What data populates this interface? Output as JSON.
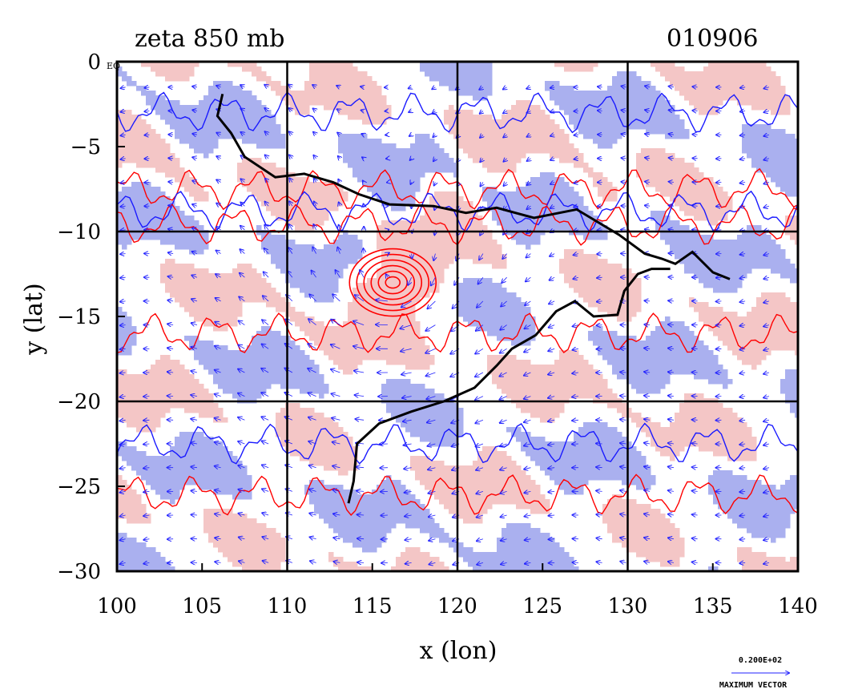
{
  "title_left": "zeta 850 mb",
  "title_right": "010906",
  "equator_suffix": "EQ",
  "chart_data": {
    "type": "map",
    "title": "zeta 850 mb",
    "date_code": "010906",
    "xlabel": "x (lon)",
    "ylabel": "y (lat)",
    "xlim": [
      100,
      140
    ],
    "ylim": [
      -30,
      0
    ],
    "xticks": [
      100,
      105,
      110,
      115,
      120,
      125,
      130,
      135,
      140
    ],
    "xtick_labels": [
      "100",
      "105",
      "110",
      "115",
      "120",
      "125",
      "130",
      "135",
      "140"
    ],
    "yticks": [
      0,
      -5,
      -10,
      -15,
      -20,
      -25,
      -30
    ],
    "ytick_labels": [
      "0",
      "−5",
      "−10",
      "−15",
      "−20",
      "−25",
      "−30"
    ],
    "grid_lon": [
      110,
      120,
      130
    ],
    "grid_lat": [
      -10,
      -20
    ],
    "cyclone_center": {
      "lon": 116.2,
      "lat": -13.0
    },
    "colors": {
      "positive_fill": "#f4c6c6",
      "negative_fill": "#aab0ef",
      "positive_contour": "#ff0000",
      "negative_contour": "#1a1aff",
      "vectors": "#2020ff",
      "coastline": "#000000"
    },
    "coastline_points": [
      [
        106.2,
        -1.9
      ],
      [
        105.9,
        -3.2
      ],
      [
        106.7,
        -4.2
      ],
      [
        107.5,
        -5.6
      ],
      [
        109.3,
        -6.8
      ],
      [
        111.0,
        -6.6
      ],
      [
        112.7,
        -7.1
      ],
      [
        114.2,
        -7.8
      ],
      [
        116.0,
        -8.4
      ],
      [
        118.6,
        -8.5
      ],
      [
        120.5,
        -8.9
      ],
      [
        122.3,
        -8.6
      ],
      [
        124.5,
        -9.2
      ],
      [
        127.0,
        -8.7
      ],
      [
        129.5,
        -10.2
      ],
      [
        131.0,
        -11.3
      ],
      [
        132.0,
        -11.6
      ],
      [
        132.8,
        -11.9
      ],
      [
        133.8,
        -11.2
      ],
      [
        135.0,
        -12.4
      ],
      [
        136.0,
        -12.8
      ]
    ],
    "australia_coast_points": [
      [
        113.6,
        -26.0
      ],
      [
        113.9,
        -24.7
      ],
      [
        114.1,
        -22.5
      ],
      [
        115.4,
        -21.3
      ],
      [
        117.3,
        -20.6
      ],
      [
        119.2,
        -20.0
      ],
      [
        121.0,
        -19.2
      ],
      [
        122.3,
        -17.9
      ],
      [
        123.2,
        -16.9
      ],
      [
        124.6,
        -16.1
      ],
      [
        125.8,
        -14.7
      ],
      [
        126.9,
        -14.1
      ],
      [
        128.0,
        -15.0
      ],
      [
        129.4,
        -14.9
      ],
      [
        129.8,
        -13.5
      ],
      [
        130.6,
        -12.5
      ],
      [
        131.4,
        -12.2
      ],
      [
        132.5,
        -12.2
      ]
    ],
    "vector_key": {
      "label_top": "0.200E+02",
      "label_bottom": "MAXIMUM VECTOR"
    }
  }
}
